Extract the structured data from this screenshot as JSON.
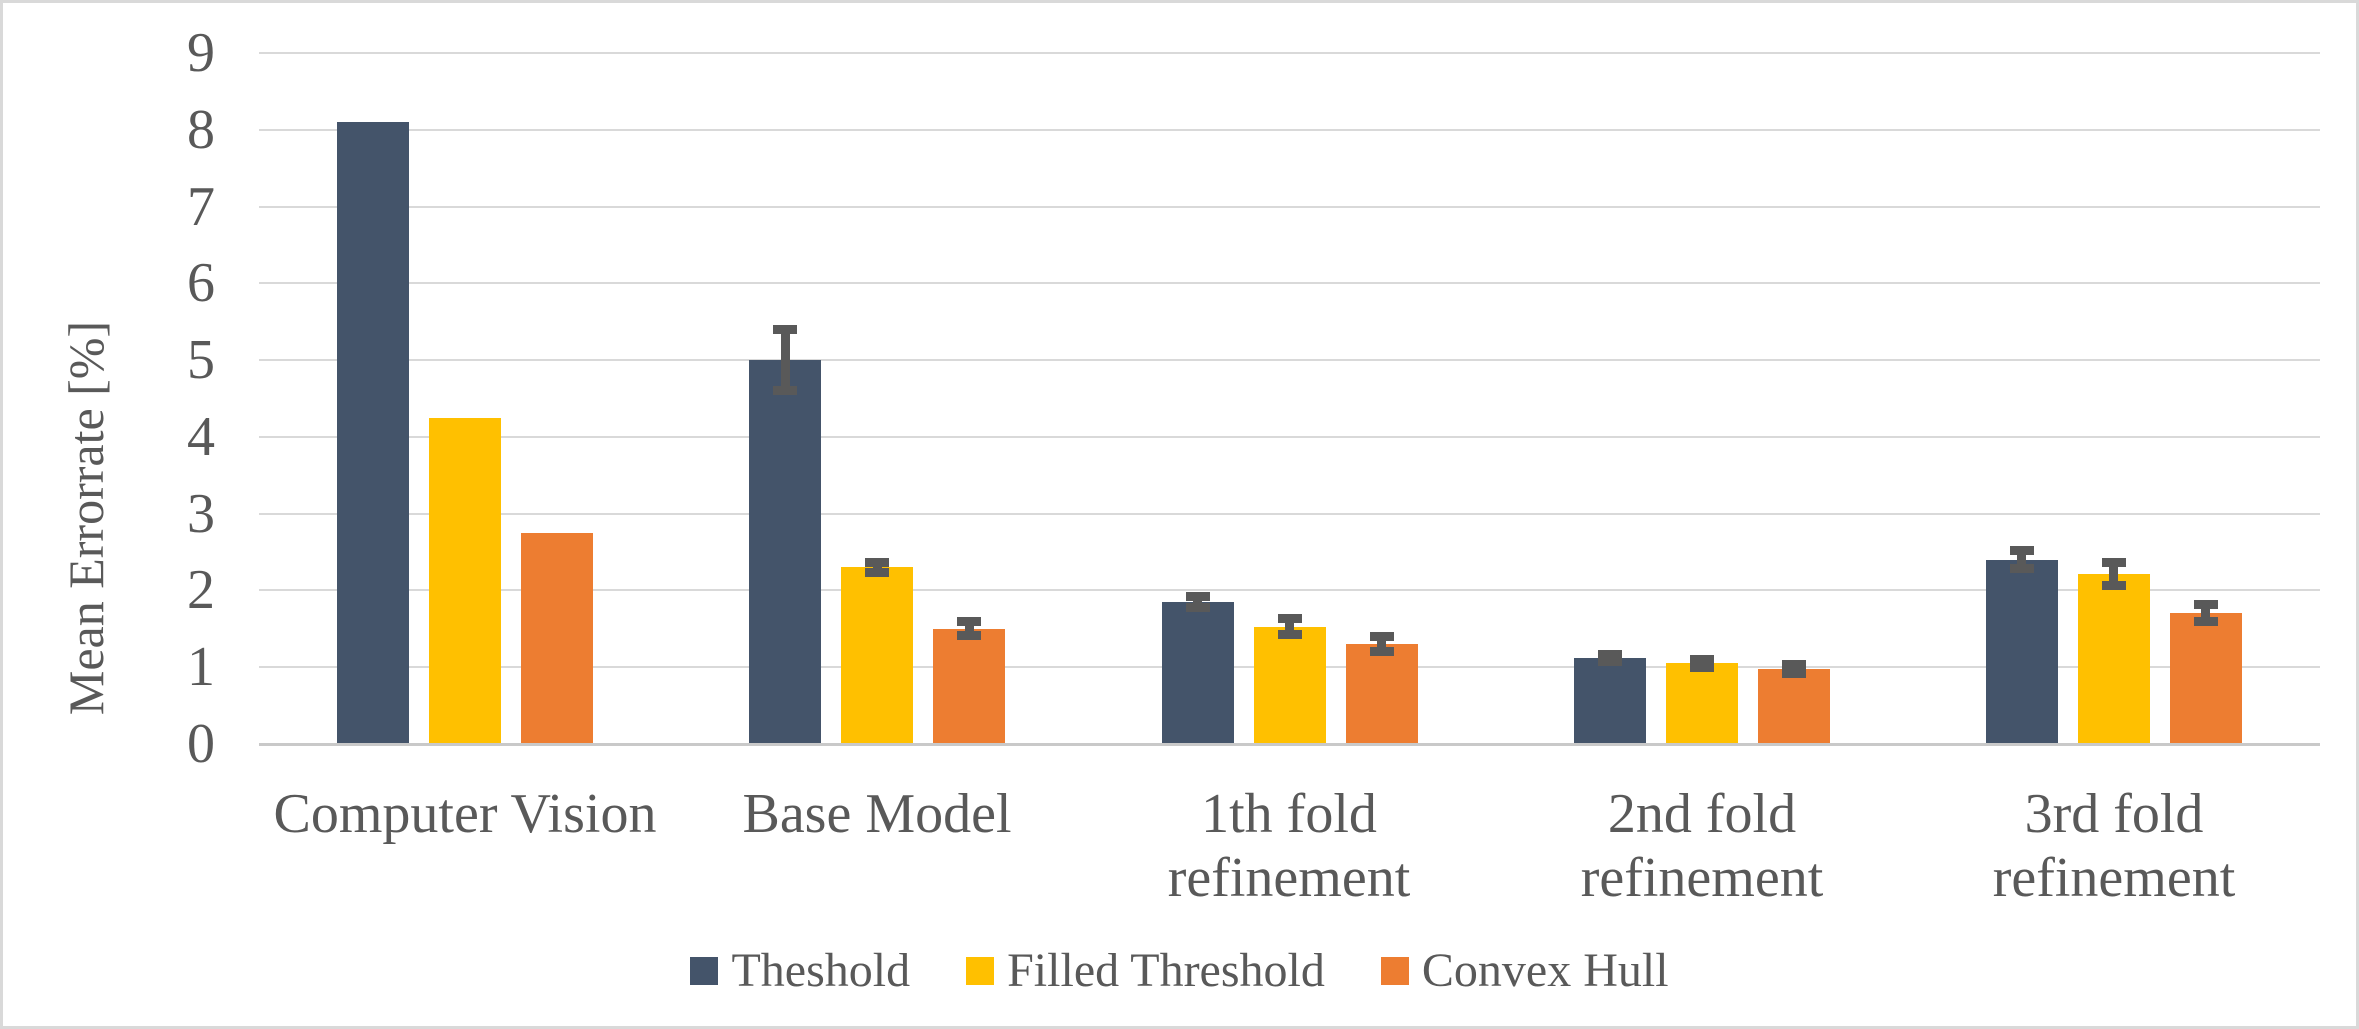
{
  "chart_data": {
    "type": "bar",
    "title": "",
    "xlabel": "",
    "ylabel": "Mean Errorrate [%]",
    "ylim": [
      0,
      9
    ],
    "yticks": [
      "0",
      "1",
      "2",
      "3",
      "4",
      "5",
      "6",
      "7",
      "8",
      "9"
    ],
    "grid": true,
    "legend_position": "bottom",
    "categories": [
      "Computer Vision",
      "Base Model",
      "1th fold refinement",
      "2nd fold refinement",
      "3rd fold refinement"
    ],
    "category_label_lines": [
      "Computer Vision",
      "Base Model",
      "1th fold\nrefinement",
      "2nd fold\nrefinement",
      "3rd fold\nrefinement"
    ],
    "series": [
      {
        "name": "Theshold",
        "color": "#44546A",
        "values": [
          8.1,
          5.0,
          1.85,
          1.12,
          2.4
        ],
        "errors": [
          0,
          0.4,
          0.07,
          0.05,
          0.12
        ]
      },
      {
        "name": "Filled Threshold",
        "color": "#FFC000",
        "values": [
          4.25,
          2.3,
          1.53,
          1.05,
          2.22
        ],
        "errors": [
          0,
          0.07,
          0.1,
          0.05,
          0.15
        ]
      },
      {
        "name": "Convex Hull",
        "color": "#ED7D31",
        "values": [
          2.75,
          1.5,
          1.3,
          0.98,
          1.71
        ],
        "errors": [
          0,
          0.09,
          0.1,
          0.06,
          0.11
        ]
      }
    ],
    "error_bar_color": "#595959",
    "text_color": "#595959",
    "gridline_color": "#D9D9D9",
    "axis_line_color": "#C9C9C9",
    "background_color": "#FFFFFF"
  }
}
